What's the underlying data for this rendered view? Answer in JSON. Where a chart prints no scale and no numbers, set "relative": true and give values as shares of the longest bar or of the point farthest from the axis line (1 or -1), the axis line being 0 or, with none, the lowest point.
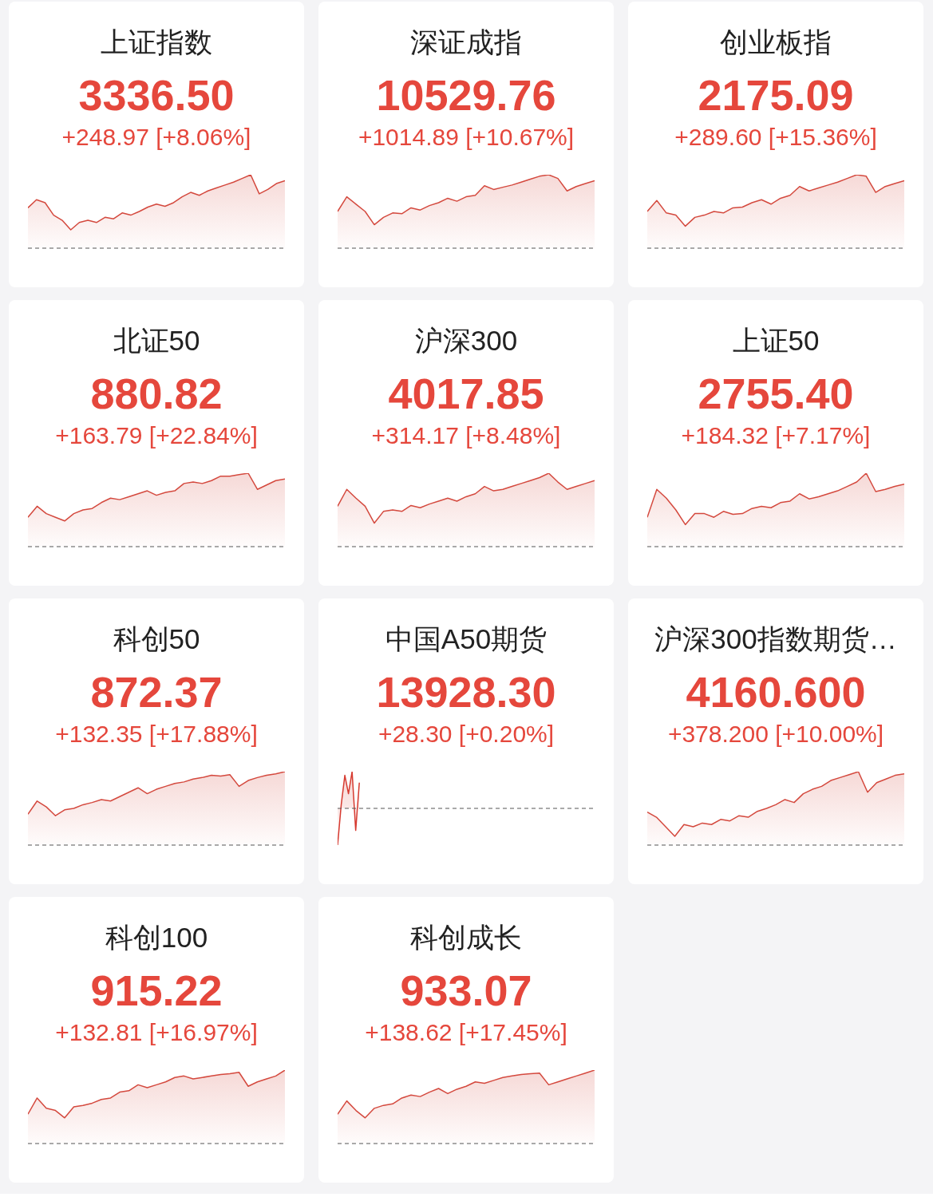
{
  "chart_data": [
    {
      "type": "area",
      "title": "上证指数",
      "subtitle": "3336.50",
      "annotations": [
        "+248.97 [+8.06%]"
      ],
      "relative": true,
      "color": "#d4493e",
      "categories": [
        null,
        null,
        null,
        null,
        null,
        null,
        null,
        null,
        null,
        null,
        null,
        null,
        null,
        null,
        null,
        null,
        null,
        null,
        null,
        null,
        null,
        null,
        null,
        null,
        null,
        null,
        null,
        null,
        null,
        null,
        null
      ],
      "values": [
        0.55,
        0.66,
        0.62,
        0.45,
        0.38,
        0.25,
        0.35,
        0.38,
        0.35,
        0.42,
        0.4,
        0.48,
        0.45,
        0.5,
        0.56,
        0.6,
        0.57,
        0.62,
        0.7,
        0.76,
        0.72,
        0.78,
        0.82,
        0.86,
        0.9,
        0.95,
        1.0,
        0.74,
        0.8,
        0.88,
        0.92
      ]
    },
    {
      "type": "area",
      "title": "深证成指",
      "subtitle": "10529.76",
      "annotations": [
        "+1014.89 [+10.67%]"
      ],
      "relative": true,
      "color": "#d4493e",
      "categories": [
        null,
        null,
        null,
        null,
        null,
        null,
        null,
        null,
        null,
        null,
        null,
        null,
        null,
        null,
        null,
        null,
        null,
        null,
        null,
        null,
        null,
        null,
        null,
        null,
        null,
        null,
        null,
        null,
        null
      ],
      "values": [
        0.5,
        0.7,
        0.6,
        0.5,
        0.32,
        0.42,
        0.48,
        0.47,
        0.55,
        0.52,
        0.58,
        0.62,
        0.68,
        0.64,
        0.7,
        0.72,
        0.85,
        0.8,
        0.83,
        0.86,
        0.9,
        0.94,
        0.98,
        1.0,
        0.95,
        0.78,
        0.84,
        0.88,
        0.92
      ]
    },
    {
      "type": "area",
      "title": "创业板指",
      "subtitle": "2175.09",
      "annotations": [
        "+289.60 [+15.36%]"
      ],
      "relative": true,
      "color": "#d4493e",
      "categories": [
        null,
        null,
        null,
        null,
        null,
        null,
        null,
        null,
        null,
        null,
        null,
        null,
        null,
        null,
        null,
        null,
        null,
        null,
        null,
        null,
        null,
        null,
        null,
        null,
        null,
        null,
        null,
        null
      ],
      "values": [
        0.5,
        0.65,
        0.48,
        0.45,
        0.3,
        0.42,
        0.45,
        0.5,
        0.48,
        0.55,
        0.56,
        0.62,
        0.66,
        0.6,
        0.68,
        0.72,
        0.84,
        0.78,
        0.82,
        0.86,
        0.9,
        0.95,
        1.0,
        0.98,
        0.76,
        0.84,
        0.88,
        0.92
      ]
    },
    {
      "type": "area",
      "title": "北证50",
      "subtitle": "880.82",
      "annotations": [
        "+163.79 [+22.84%]"
      ],
      "relative": true,
      "color": "#d4493e",
      "categories": [
        null,
        null,
        null,
        null,
        null,
        null,
        null,
        null,
        null,
        null,
        null,
        null,
        null,
        null,
        null,
        null,
        null,
        null,
        null,
        null,
        null,
        null,
        null,
        null,
        null,
        null,
        null,
        null,
        null
      ],
      "values": [
        0.4,
        0.55,
        0.45,
        0.4,
        0.35,
        0.45,
        0.5,
        0.52,
        0.6,
        0.66,
        0.64,
        0.68,
        0.72,
        0.76,
        0.7,
        0.74,
        0.76,
        0.86,
        0.88,
        0.86,
        0.9,
        0.96,
        0.96,
        0.98,
        1.0,
        0.78,
        0.84,
        0.9,
        0.92
      ]
    },
    {
      "type": "area",
      "title": "沪深300",
      "subtitle": "4017.85",
      "annotations": [
        "+314.17 [+8.48%]"
      ],
      "relative": true,
      "color": "#d4493e",
      "categories": [
        null,
        null,
        null,
        null,
        null,
        null,
        null,
        null,
        null,
        null,
        null,
        null,
        null,
        null,
        null,
        null,
        null,
        null,
        null,
        null,
        null,
        null,
        null,
        null,
        null,
        null,
        null,
        null,
        null
      ],
      "values": [
        0.55,
        0.78,
        0.66,
        0.55,
        0.32,
        0.48,
        0.5,
        0.48,
        0.56,
        0.53,
        0.58,
        0.62,
        0.66,
        0.62,
        0.68,
        0.72,
        0.82,
        0.76,
        0.78,
        0.82,
        0.86,
        0.9,
        0.94,
        1.0,
        0.88,
        0.78,
        0.82,
        0.86,
        0.9
      ]
    },
    {
      "type": "area",
      "title": "上证50",
      "subtitle": "2755.40",
      "annotations": [
        "+184.32 [+7.17%]"
      ],
      "relative": true,
      "color": "#d4493e",
      "categories": [
        null,
        null,
        null,
        null,
        null,
        null,
        null,
        null,
        null,
        null,
        null,
        null,
        null,
        null,
        null,
        null,
        null,
        null,
        null,
        null,
        null,
        null,
        null,
        null,
        null,
        null,
        null,
        null
      ],
      "values": [
        0.4,
        0.78,
        0.66,
        0.5,
        0.3,
        0.45,
        0.45,
        0.4,
        0.48,
        0.44,
        0.45,
        0.52,
        0.55,
        0.53,
        0.6,
        0.62,
        0.72,
        0.65,
        0.68,
        0.72,
        0.76,
        0.82,
        0.88,
        1.0,
        0.75,
        0.78,
        0.82,
        0.85
      ]
    },
    {
      "type": "area",
      "title": "科创50",
      "subtitle": "872.37",
      "annotations": [
        "+132.35 [+17.88%]"
      ],
      "relative": true,
      "color": "#d4493e",
      "categories": [
        null,
        null,
        null,
        null,
        null,
        null,
        null,
        null,
        null,
        null,
        null,
        null,
        null,
        null,
        null,
        null,
        null,
        null,
        null,
        null,
        null,
        null,
        null,
        null,
        null,
        null,
        null,
        null,
        null
      ],
      "values": [
        0.42,
        0.6,
        0.52,
        0.4,
        0.48,
        0.5,
        0.55,
        0.58,
        0.62,
        0.6,
        0.66,
        0.72,
        0.78,
        0.7,
        0.76,
        0.8,
        0.84,
        0.86,
        0.9,
        0.92,
        0.95,
        0.94,
        0.96,
        0.8,
        0.88,
        0.92,
        0.95,
        0.97,
        1.0
      ]
    },
    {
      "type": "area",
      "title": "中国A50期货",
      "subtitle": "13928.30",
      "annotations": [
        "+28.30 [+0.20%]"
      ],
      "relative": true,
      "ref_lines": [
        {
          "axis": "y",
          "value": 0,
          "line_style": "dashed",
          "color": "#555555"
        }
      ],
      "color": "#d63a30",
      "categories": [
        null,
        null,
        null,
        null,
        null,
        null,
        null,
        null,
        null,
        null,
        null,
        null,
        null,
        null,
        null,
        null,
        null,
        null,
        null,
        null,
        null,
        null,
        null,
        null,
        null,
        null,
        null,
        null,
        null,
        null,
        null,
        null,
        null,
        null,
        null,
        null,
        null,
        null,
        null,
        null,
        null,
        null,
        null,
        null,
        null,
        null,
        null,
        null,
        null,
        null,
        null,
        null,
        null,
        null,
        null,
        null,
        null,
        null,
        null,
        null,
        null,
        null,
        null,
        null,
        null,
        null,
        null,
        null,
        null,
        null,
        null,
        null
      ],
      "values": [
        -1.0,
        0.1,
        0.9,
        0.4,
        1.0,
        -0.6,
        0.7,
        null,
        null,
        null,
        null,
        null,
        null,
        null,
        null,
        null,
        null,
        null,
        null,
        null,
        null,
        null,
        null,
        null,
        null,
        null,
        null,
        null,
        null,
        null,
        null,
        null,
        null,
        null,
        null,
        null,
        null,
        null,
        null,
        null,
        null,
        null,
        null,
        null,
        null,
        null,
        null,
        null,
        null,
        null,
        null,
        null,
        null,
        null,
        null,
        null,
        null,
        null,
        null,
        null,
        null,
        null,
        null,
        null,
        null,
        null,
        null,
        null,
        null,
        null,
        null,
        null
      ]
    },
    {
      "type": "area",
      "title": "沪深300指数期货…",
      "subtitle": "4160.600",
      "annotations": [
        "+378.200 [+10.00%]"
      ],
      "relative": true,
      "color": "#d4493e",
      "categories": [
        null,
        null,
        null,
        null,
        null,
        null,
        null,
        null,
        null,
        null,
        null,
        null,
        null,
        null,
        null,
        null,
        null,
        null,
        null,
        null,
        null,
        null,
        null,
        null,
        null,
        null,
        null,
        null,
        null
      ],
      "values": [
        0.45,
        0.38,
        0.25,
        0.12,
        0.28,
        0.25,
        0.3,
        0.28,
        0.35,
        0.33,
        0.4,
        0.38,
        0.46,
        0.5,
        0.55,
        0.62,
        0.58,
        0.7,
        0.76,
        0.8,
        0.88,
        0.92,
        0.96,
        1.0,
        0.72,
        0.85,
        0.9,
        0.95,
        0.97
      ]
    },
    {
      "type": "area",
      "title": "科创100",
      "subtitle": "915.22",
      "annotations": [
        "+132.81 [+16.97%]"
      ],
      "relative": true,
      "color": "#d4493e",
      "categories": [
        null,
        null,
        null,
        null,
        null,
        null,
        null,
        null,
        null,
        null,
        null,
        null,
        null,
        null,
        null,
        null,
        null,
        null,
        null,
        null,
        null,
        null,
        null,
        null,
        null,
        null,
        null,
        null,
        null
      ],
      "values": [
        0.4,
        0.62,
        0.48,
        0.45,
        0.35,
        0.5,
        0.52,
        0.55,
        0.6,
        0.62,
        0.7,
        0.72,
        0.8,
        0.76,
        0.8,
        0.84,
        0.9,
        0.92,
        0.88,
        0.9,
        0.92,
        0.94,
        0.95,
        0.97,
        0.78,
        0.84,
        0.88,
        0.92,
        1.0
      ]
    },
    {
      "type": "area",
      "title": "科创成长",
      "subtitle": "933.07",
      "annotations": [
        "+138.62 [+17.45%]"
      ],
      "relative": true,
      "color": "#d4493e",
      "categories": [
        null,
        null,
        null,
        null,
        null,
        null,
        null,
        null,
        null,
        null,
        null,
        null,
        null,
        null,
        null,
        null,
        null,
        null,
        null,
        null,
        null,
        null,
        null,
        null,
        null,
        null,
        null,
        null,
        null
      ],
      "values": [
        0.4,
        0.58,
        0.45,
        0.35,
        0.48,
        0.52,
        0.54,
        0.62,
        0.66,
        0.64,
        0.7,
        0.75,
        0.68,
        0.74,
        0.78,
        0.84,
        0.82,
        0.86,
        0.9,
        0.92,
        0.94,
        0.95,
        0.96,
        0.8,
        0.84,
        0.88,
        0.92,
        0.96,
        1.0
      ]
    }
  ]
}
